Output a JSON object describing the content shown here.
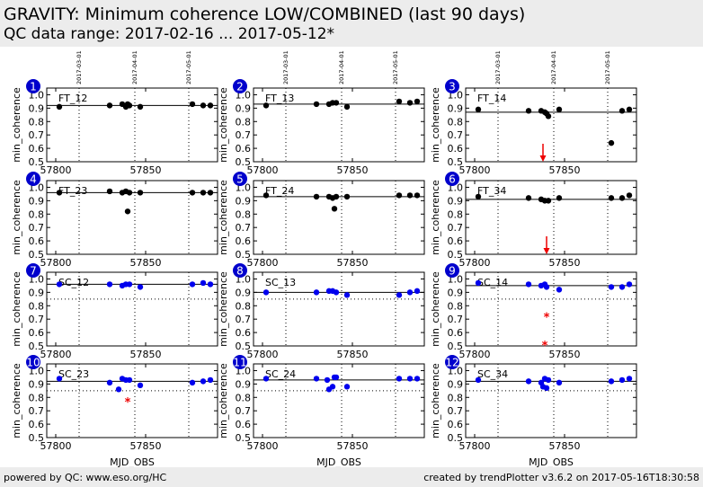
{
  "header": {
    "title": "GRAVITY: Minimum coherence LOW/COMBINED (last 90 days)",
    "subtitle": "QC data range: 2017-02-16 ... 2017-05-12*"
  },
  "footer": {
    "left": "powered by QC: www.eso.org/HC",
    "right": "created by trendPlotter v3.6.2 on 2017-05-16T18:30:58"
  },
  "colors": {
    "ft": "#000000",
    "sc": "#0000ee",
    "outlier": "#ee0000",
    "badge": "#0000cc"
  },
  "chart_data": {
    "type": "scatter",
    "xlabel": "MJD_OBS",
    "ylabel": "min_coherence",
    "xlim": [
      57795,
      57890
    ],
    "ylim": [
      0.5,
      1.05
    ],
    "xticks": [
      57800,
      57850
    ],
    "yticks": [
      0.5,
      0.6,
      0.7,
      0.8,
      0.9,
      1.0
    ],
    "ytick_labels": [
      "0.5",
      "0.6",
      "0.7",
      "0.8",
      "0.9",
      "1.0"
    ],
    "date_markers": [
      {
        "label": "2017-03-01",
        "mjd": 57813
      },
      {
        "label": "2017-04-01",
        "mjd": 57844
      },
      {
        "label": "2017-05-01",
        "mjd": 57874
      }
    ],
    "panels": [
      {
        "id": "1",
        "name": "FT_12",
        "color": "ft",
        "ref": 0.92,
        "lower": null,
        "points": [
          [
            57802,
            0.91
          ],
          [
            57830,
            0.92
          ],
          [
            57837,
            0.93
          ],
          [
            57839,
            0.91
          ],
          [
            57840,
            0.93
          ],
          [
            57841,
            0.92
          ],
          [
            57847,
            0.91
          ],
          [
            57876,
            0.93
          ],
          [
            57882,
            0.92
          ],
          [
            57886,
            0.92
          ]
        ],
        "outliers": [],
        "arrows": []
      },
      {
        "id": "2",
        "name": "FT_13",
        "color": "ft",
        "ref": 0.93,
        "lower": null,
        "points": [
          [
            57802,
            0.92
          ],
          [
            57830,
            0.93
          ],
          [
            57837,
            0.93
          ],
          [
            57839,
            0.94
          ],
          [
            57841,
            0.94
          ],
          [
            57847,
            0.91
          ],
          [
            57876,
            0.95
          ],
          [
            57882,
            0.94
          ],
          [
            57886,
            0.95
          ]
        ],
        "outliers": [],
        "arrows": []
      },
      {
        "id": "3",
        "name": "FT_14",
        "color": "ft",
        "ref": 0.87,
        "lower": null,
        "points": [
          [
            57802,
            0.89
          ],
          [
            57830,
            0.88
          ],
          [
            57837,
            0.88
          ],
          [
            57839,
            0.87
          ],
          [
            57840,
            0.86
          ],
          [
            57841,
            0.84
          ],
          [
            57847,
            0.89
          ],
          [
            57876,
            0.64
          ],
          [
            57882,
            0.88
          ],
          [
            57886,
            0.89
          ]
        ],
        "outliers": [],
        "arrows": [
          57838
        ]
      },
      {
        "id": "4",
        "name": "FT_23",
        "color": "ft",
        "ref": 0.96,
        "lower": null,
        "points": [
          [
            57802,
            0.96
          ],
          [
            57830,
            0.97
          ],
          [
            57837,
            0.96
          ],
          [
            57839,
            0.97
          ],
          [
            57840,
            0.82
          ],
          [
            57841,
            0.96
          ],
          [
            57847,
            0.96
          ],
          [
            57876,
            0.96
          ],
          [
            57882,
            0.96
          ],
          [
            57886,
            0.96
          ]
        ],
        "outliers": [],
        "arrows": []
      },
      {
        "id": "5",
        "name": "FT_24",
        "color": "ft",
        "ref": 0.93,
        "lower": null,
        "points": [
          [
            57802,
            0.94
          ],
          [
            57830,
            0.93
          ],
          [
            57837,
            0.93
          ],
          [
            57839,
            0.92
          ],
          [
            57840,
            0.84
          ],
          [
            57841,
            0.93
          ],
          [
            57847,
            0.93
          ],
          [
            57876,
            0.94
          ],
          [
            57882,
            0.94
          ],
          [
            57886,
            0.94
          ]
        ],
        "outliers": [],
        "arrows": []
      },
      {
        "id": "6",
        "name": "FT_34",
        "color": "ft",
        "ref": 0.91,
        "lower": null,
        "points": [
          [
            57802,
            0.93
          ],
          [
            57830,
            0.92
          ],
          [
            57837,
            0.91
          ],
          [
            57839,
            0.9
          ],
          [
            57841,
            0.9
          ],
          [
            57847,
            0.92
          ],
          [
            57876,
            0.92
          ],
          [
            57882,
            0.92
          ],
          [
            57886,
            0.94
          ]
        ],
        "outliers": [],
        "arrows": [
          57840
        ]
      },
      {
        "id": "7",
        "name": "SC_12",
        "color": "sc",
        "ref": 0.96,
        "lower": 0.85,
        "points": [
          [
            57802,
            0.96
          ],
          [
            57830,
            0.96
          ],
          [
            57837,
            0.95
          ],
          [
            57839,
            0.96
          ],
          [
            57841,
            0.96
          ],
          [
            57847,
            0.94
          ],
          [
            57876,
            0.96
          ],
          [
            57882,
            0.97
          ],
          [
            57886,
            0.96
          ]
        ],
        "outliers": [],
        "arrows": []
      },
      {
        "id": "8",
        "name": "SC_13",
        "color": "sc",
        "ref": 0.9,
        "lower": 0.85,
        "points": [
          [
            57802,
            0.9
          ],
          [
            57830,
            0.9
          ],
          [
            57837,
            0.91
          ],
          [
            57839,
            0.91
          ],
          [
            57841,
            0.9
          ],
          [
            57847,
            0.88
          ],
          [
            57876,
            0.88
          ],
          [
            57882,
            0.9
          ],
          [
            57886,
            0.91
          ]
        ],
        "outliers": [],
        "arrows": []
      },
      {
        "id": "9",
        "name": "SC_14",
        "color": "sc",
        "ref": 0.95,
        "lower": 0.85,
        "points": [
          [
            57802,
            0.97
          ],
          [
            57830,
            0.96
          ],
          [
            57837,
            0.95
          ],
          [
            57839,
            0.96
          ],
          [
            57840,
            0.94
          ],
          [
            57847,
            0.92
          ],
          [
            57876,
            0.94
          ],
          [
            57882,
            0.94
          ],
          [
            57886,
            0.96
          ]
        ],
        "outliers": [
          [
            57840,
            0.71
          ],
          [
            57839,
            0.5
          ]
        ],
        "arrows": []
      },
      {
        "id": "10",
        "name": "SC_23",
        "color": "sc",
        "ref": 0.92,
        "lower": 0.85,
        "points": [
          [
            57802,
            0.94
          ],
          [
            57830,
            0.91
          ],
          [
            57835,
            0.86
          ],
          [
            57837,
            0.94
          ],
          [
            57839,
            0.93
          ],
          [
            57841,
            0.93
          ],
          [
            57847,
            0.89
          ],
          [
            57876,
            0.91
          ],
          [
            57882,
            0.92
          ],
          [
            57886,
            0.93
          ]
        ],
        "outliers": [
          [
            57840,
            0.76
          ]
        ],
        "arrows": []
      },
      {
        "id": "11",
        "name": "SC_24",
        "color": "sc",
        "ref": 0.93,
        "lower": 0.85,
        "points": [
          [
            57802,
            0.94
          ],
          [
            57830,
            0.94
          ],
          [
            57836,
            0.93
          ],
          [
            57837,
            0.86
          ],
          [
            57839,
            0.88
          ],
          [
            57840,
            0.95
          ],
          [
            57841,
            0.95
          ],
          [
            57847,
            0.88
          ],
          [
            57876,
            0.94
          ],
          [
            57882,
            0.94
          ],
          [
            57886,
            0.94
          ]
        ],
        "outliers": [],
        "arrows": []
      },
      {
        "id": "12",
        "name": "SC_34",
        "color": "sc",
        "ref": 0.92,
        "lower": 0.85,
        "points": [
          [
            57802,
            0.93
          ],
          [
            57830,
            0.92
          ],
          [
            57837,
            0.91
          ],
          [
            57838,
            0.88
          ],
          [
            57839,
            0.94
          ],
          [
            57840,
            0.87
          ],
          [
            57841,
            0.93
          ],
          [
            57847,
            0.91
          ],
          [
            57876,
            0.92
          ],
          [
            57882,
            0.93
          ],
          [
            57886,
            0.94
          ]
        ],
        "outliers": [],
        "arrows": []
      }
    ]
  }
}
